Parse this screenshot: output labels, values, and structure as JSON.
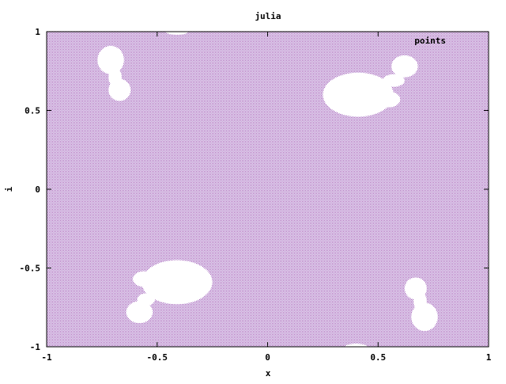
{
  "chart_data": {
    "type": "scatter",
    "title": "julia",
    "xlabel": "x",
    "ylabel": "i",
    "xlim": [
      -1,
      1
    ],
    "ylim": [
      -1,
      1
    ],
    "xticks": [
      "-1",
      "-0.5",
      "0",
      "0.5",
      "1"
    ],
    "xtick_values": [
      -1,
      -0.5,
      0,
      0.5,
      1
    ],
    "yticks": [
      "-1",
      "-0.5",
      "0",
      "0.5",
      "1"
    ],
    "ytick_values": [
      -1,
      -0.5,
      0,
      0.5,
      1
    ],
    "grid": false,
    "legend": {
      "position": "top-right",
      "entries": [
        "points"
      ]
    },
    "series": [
      {
        "name": "points",
        "color": "#9a4fb0",
        "marker": "dot",
        "description_of_fill": "dense regular lattice of points covering the whole domain except several blank regions",
        "blank_regions": [
          {
            "cx": -0.71,
            "cy": 0.82,
            "rx": 0.06,
            "ry": 0.09
          },
          {
            "cx": -0.67,
            "cy": 0.63,
            "rx": 0.05,
            "ry": 0.07
          },
          {
            "cx": -0.69,
            "cy": 0.71,
            "rx": 0.03,
            "ry": 0.06
          },
          {
            "cx": 0.41,
            "cy": 0.6,
            "rx": 0.16,
            "ry": 0.14
          },
          {
            "cx": 0.57,
            "cy": 0.69,
            "rx": 0.05,
            "ry": 0.04
          },
          {
            "cx": 0.62,
            "cy": 0.78,
            "rx": 0.06,
            "ry": 0.07
          },
          {
            "cx": 0.55,
            "cy": 0.57,
            "rx": 0.05,
            "ry": 0.05
          },
          {
            "cx": -0.41,
            "cy": -0.59,
            "rx": 0.16,
            "ry": 0.14
          },
          {
            "cx": -0.56,
            "cy": -0.57,
            "rx": 0.05,
            "ry": 0.05
          },
          {
            "cx": -0.58,
            "cy": -0.78,
            "rx": 0.06,
            "ry": 0.07
          },
          {
            "cx": -0.55,
            "cy": -0.7,
            "rx": 0.04,
            "ry": 0.04
          },
          {
            "cx": 0.71,
            "cy": -0.81,
            "rx": 0.06,
            "ry": 0.09
          },
          {
            "cx": 0.67,
            "cy": -0.63,
            "rx": 0.05,
            "ry": 0.07
          },
          {
            "cx": 0.69,
            "cy": -0.71,
            "rx": 0.03,
            "ry": 0.06
          },
          {
            "cx": -0.41,
            "cy": 1.0,
            "rx": 0.05,
            "ry": 0.02
          },
          {
            "cx": 0.4,
            "cy": -1.0,
            "rx": 0.05,
            "ry": 0.02
          }
        ]
      }
    ]
  }
}
